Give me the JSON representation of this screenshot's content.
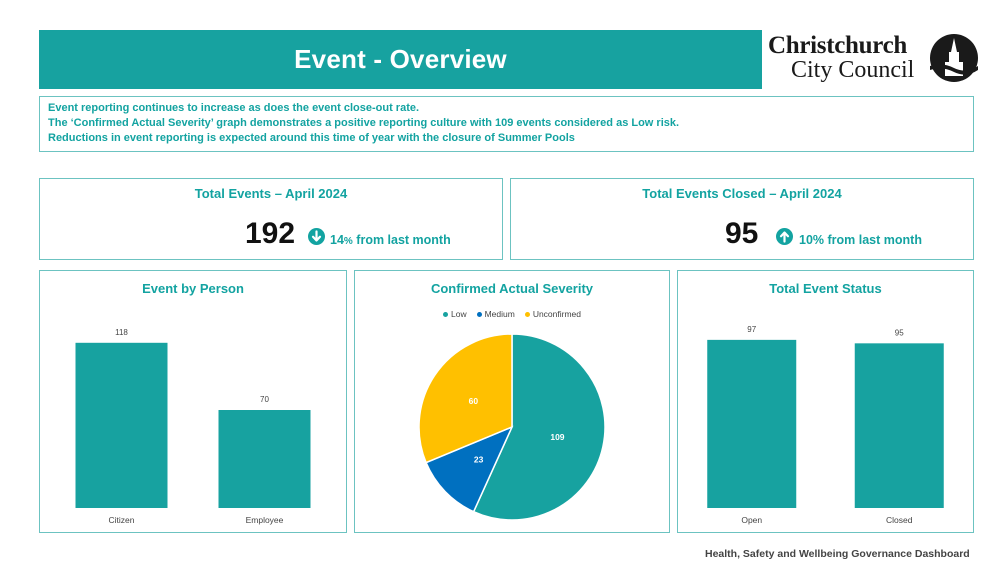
{
  "header": {
    "title": "Event - Overview"
  },
  "logo": {
    "line1": "Christchurch",
    "line2": "City Council"
  },
  "summary": {
    "lines": [
      "Event reporting continues to increase as does the event close-out rate.",
      "The ‘Confirmed Actual Severity’ graph demonstrates a positive reporting culture with 109 events considered as Low risk.",
      "Reductions in event reporting is expected around this time of year with the closure of Summer Pools"
    ]
  },
  "kpis": {
    "total_events": {
      "title": "Total Events – April 2024",
      "value": "192",
      "change_pct": "14",
      "change_unit": "%",
      "change_text": " from last month",
      "direction": "down"
    },
    "total_closed": {
      "title": "Total Events Closed – April 2024",
      "value": "95",
      "change_pct": "10%",
      "change_text": " from last month",
      "direction": "up"
    }
  },
  "colors": {
    "teal": "#17a2a0",
    "blue": "#0070c0",
    "yellow": "#ffc000"
  },
  "chart_data": [
    {
      "type": "bar",
      "title": "Event by Person",
      "categories": [
        "Citizen",
        "Employee"
      ],
      "values": [
        118,
        70
      ],
      "ylim": [
        0,
        130
      ],
      "grid": false
    },
    {
      "type": "pie",
      "title": "Confirmed Actual Severity",
      "categories": [
        "Low",
        "Medium",
        "Unconfirmed"
      ],
      "values": [
        109,
        23,
        60
      ],
      "colors": [
        "#17a2a0",
        "#0070c0",
        "#ffc000"
      ],
      "legend": "top"
    },
    {
      "type": "bar",
      "title": "Total Event Status",
      "categories": [
        "Open",
        "Closed"
      ],
      "values": [
        97,
        95
      ],
      "ylim": [
        0,
        105
      ],
      "grid": false
    }
  ],
  "footer": {
    "text": "Health, Safety and Wellbeing Governance Dashboard"
  }
}
